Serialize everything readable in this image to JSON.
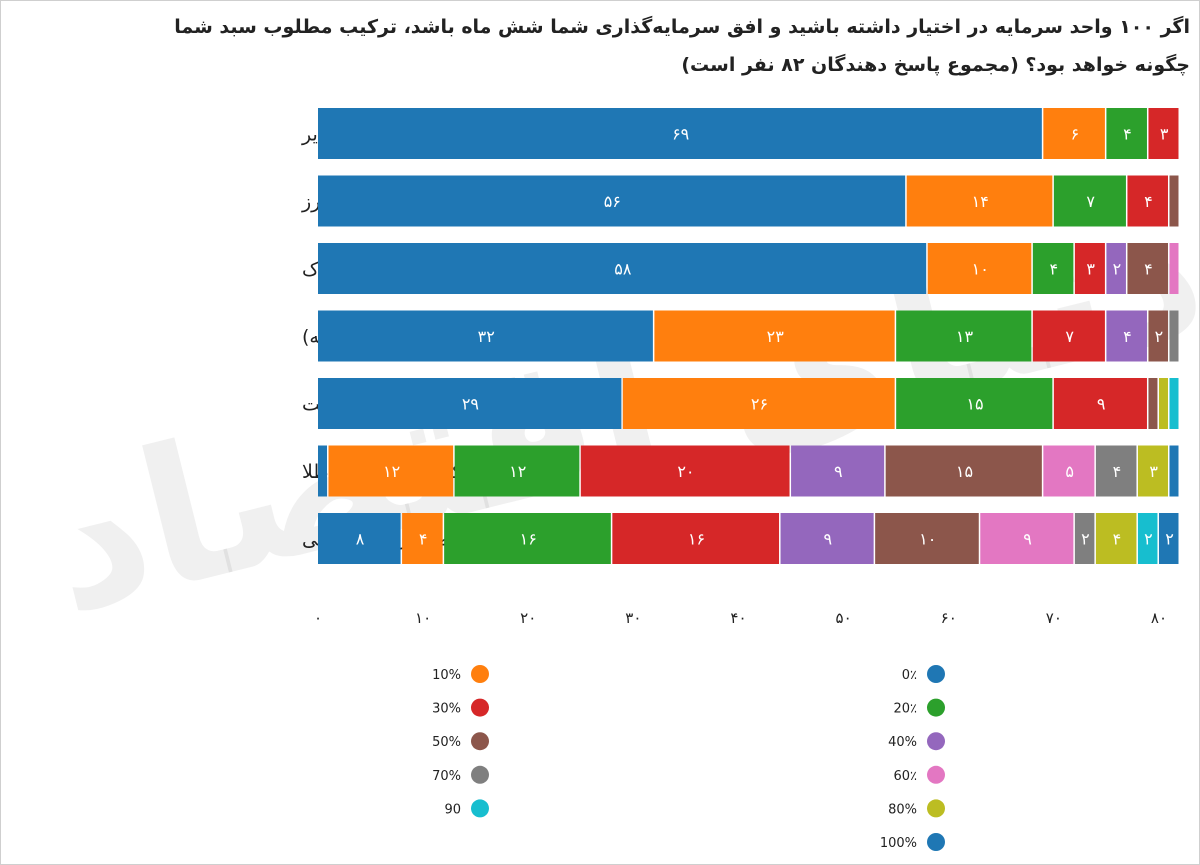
{
  "chart_data": {
    "type": "bar",
    "orientation": "horizontal",
    "stacked": true,
    "title": "اگر ۱۰۰ واحد سرمایه در اختیار داشته باشید و افق سرمایه‌گذاری شما شش ماه باشد، ترکیب مطلوب سبد شما",
    "subtitle": "چگونه خواهد بود؟ (مجموع پاسخ دهندگان ۸۲ نفر است)",
    "categories": [
      "سایر",
      "رمزارز",
      "مسکن و املاک",
      "ارز (نقد و حواله)",
      "درآمد ثابت",
      "طلا، سکه و صندوق‌های طلا",
      "سهام و صندوق‌های سهامی"
    ],
    "series": [
      {
        "name": "0٪",
        "color": "#1f77b4",
        "values": [
          69,
          56,
          58,
          32,
          29,
          1,
          8
        ]
      },
      {
        "name": "10%",
        "color": "#ff7f0e",
        "values": [
          6,
          14,
          10,
          23,
          26,
          12,
          4
        ]
      },
      {
        "name": "20٪",
        "color": "#2ca02c",
        "values": [
          4,
          7,
          4,
          13,
          15,
          12,
          16
        ]
      },
      {
        "name": "30%",
        "color": "#d62728",
        "values": [
          3,
          4,
          3,
          7,
          9,
          20,
          16
        ]
      },
      {
        "name": "40%",
        "color": "#9467bd",
        "values": [
          0,
          0,
          2,
          4,
          0,
          9,
          9
        ]
      },
      {
        "name": "50%",
        "color": "#8c564b",
        "values": [
          0,
          1,
          4,
          2,
          1,
          15,
          10
        ]
      },
      {
        "name": "60٪",
        "color": "#e377c2",
        "values": [
          0,
          0,
          1,
          0,
          0,
          5,
          9
        ]
      },
      {
        "name": "70%",
        "color": "#7f7f7f",
        "values": [
          0,
          0,
          0,
          1,
          0,
          4,
          2
        ]
      },
      {
        "name": "80%",
        "color": "#bcbd22",
        "values": [
          0,
          0,
          0,
          0,
          1,
          3,
          4
        ]
      },
      {
        "name": "90",
        "color": "#17becf",
        "values": [
          0,
          0,
          0,
          0,
          1,
          0,
          2
        ]
      },
      {
        "name": "100%",
        "color": "#1f77b4",
        "values": [
          0,
          0,
          0,
          0,
          0,
          1,
          2
        ]
      }
    ],
    "bar_labels": [
      [
        "۶۹",
        "۶",
        "۴",
        "۳",
        "",
        "",
        "",
        "",
        "",
        "",
        ""
      ],
      [
        "۵۶",
        "۱۴",
        "۷",
        "۴",
        "",
        "",
        "",
        "",
        "",
        "",
        ""
      ],
      [
        "۵۸",
        "۱۰",
        "۴",
        "۳",
        "۲",
        "۴",
        "",
        "",
        "",
        "",
        ""
      ],
      [
        "۳۲",
        "۲۳",
        "۱۳",
        "۷",
        "۴",
        "۲",
        "",
        "",
        "",
        "",
        ""
      ],
      [
        "۲۹",
        "۲۶",
        "۱۵",
        "۹",
        "",
        "",
        "",
        "",
        "",
        "",
        ""
      ],
      [
        "",
        "۱۲",
        "۱۲",
        "۲۰",
        "۹",
        "۱۵",
        "۵",
        "۴",
        "۳",
        "",
        ""
      ],
      [
        "۸",
        "۴",
        "۱۶",
        "۱۶",
        "۹",
        "۱۰",
        "۹",
        "۲",
        "۴",
        "۲",
        "۲"
      ]
    ],
    "x_ticks": [
      0,
      10,
      20,
      30,
      40,
      50,
      60,
      70,
      80
    ],
    "x_tick_labels": [
      "۰",
      "۱۰",
      "۲۰",
      "۳۰",
      "۴۰",
      "۵۰",
      "۶۰",
      "۷۰",
      "۸۰"
    ],
    "xlim": [
      0,
      82
    ],
    "xlabel": "",
    "ylabel": "",
    "grid": false,
    "legend_position": "bottom",
    "watermark": "دنیای اقتصاد"
  }
}
